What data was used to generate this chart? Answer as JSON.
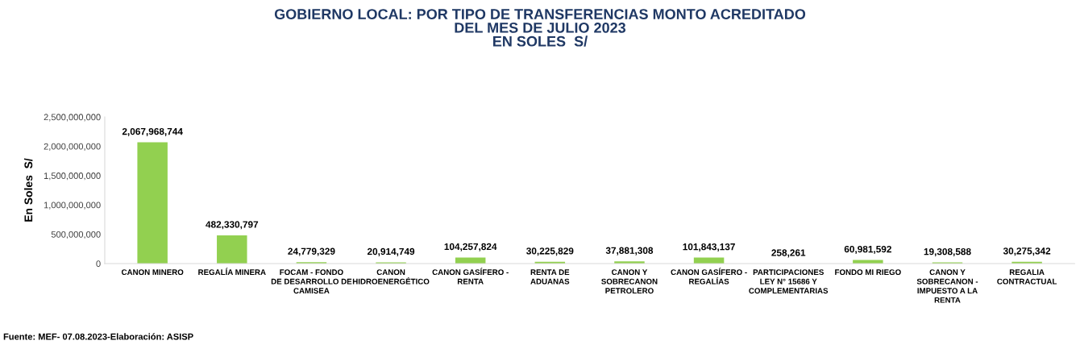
{
  "chart_data": {
    "type": "bar",
    "title": "GOBIERNO LOCAL: POR TIPO DE TRANSFERENCIAS MONTO ACREDITADO\nDEL MES DE JULIO 2023\nEN SOLES  S/",
    "ylabel": "En Soles  S/",
    "categories": [
      "CANON MINERO",
      "REGALÍA MINERA",
      "FOCAM - FONDO\nDE DESARROLLO DE\nCAMISEA",
      "CANON\nHIDROENERGÉTICO",
      "CANON GASÍFERO -\nRENTA",
      "RENTA DE\nADUANAS",
      "CANON Y\nSOBRECANON\nPETROLERO",
      "CANON GASÍFERO -\nREGALÍAS",
      "PARTICIPACIONES\nLEY N° 15686 Y\nCOMPLEMENTARIAS",
      "FONDO MI RIEGO",
      "CANON Y\nSOBRECANON -\nIMPUESTO A LA\nRENTA",
      "REGALIA\nCONTRACTUAL"
    ],
    "values": [
      2067968744,
      482330797,
      24779329,
      20914749,
      104257824,
      30225829,
      37881308,
      101843137,
      258261,
      60981592,
      19308588,
      30275342
    ],
    "color": "#92d050",
    "ylim": [
      0,
      2500000000
    ],
    "yticks": [
      {
        "value": 0,
        "label": "0"
      },
      {
        "value": 500000000,
        "label": "500,000,000"
      },
      {
        "value": 1000000000,
        "label": "1,000,000,000"
      },
      {
        "value": 1500000000,
        "label": "1,500,000,000"
      },
      {
        "value": 2000000000,
        "label": "2,000,000,000"
      },
      {
        "value": 2500000000,
        "label": "2,500,000,000"
      }
    ],
    "grid": false,
    "value_labels": [
      "2,067,968,744",
      "482,330,797",
      "24,779,329",
      "20,914,749",
      "104,257,824",
      "30,225,829",
      "37,881,308",
      "101,843,137",
      "258,261",
      "60,981,592",
      "19,308,588",
      "30,275,342"
    ],
    "annotations": [
      "Fuente: MEF- 07.08.2023-Elaboración: ASISP"
    ]
  }
}
